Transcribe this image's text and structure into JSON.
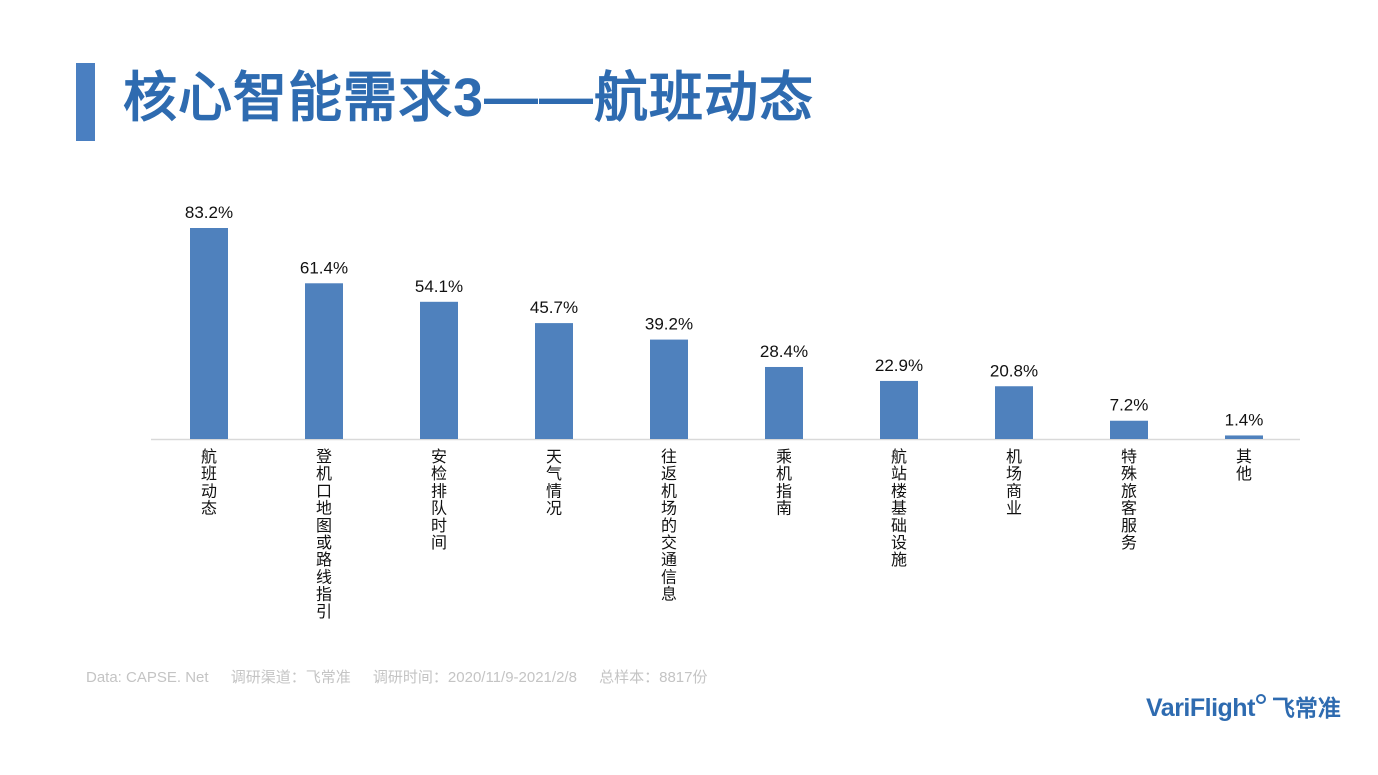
{
  "title": "核心智能需求3——航班动态",
  "footer": {
    "source": "Data: CAPSE. Net",
    "channel": "调研渠道：飞常准",
    "period": "调研时间：2020/11/9-2021/2/8",
    "sample": "总样本：8817份"
  },
  "logo": {
    "en": "VariFlight",
    "cn": "飞常准"
  },
  "colors": {
    "accent": "#4a7fc1",
    "bar": "#4f81bd",
    "title": "#2e6bb0",
    "footer": "#c4c4c4"
  },
  "chart_data": {
    "type": "bar",
    "categories": [
      "航班动态",
      "登机口地图或路线指引",
      "安检排队时间",
      "天气情况",
      "往返机场的交通信息",
      "乘机指南",
      "航站楼基础设施",
      "机场商业",
      "特殊旅客服务",
      "其他"
    ],
    "values": [
      83.2,
      61.4,
      54.1,
      45.7,
      39.2,
      28.4,
      22.9,
      20.8,
      7.2,
      1.4
    ],
    "value_labels": [
      "83.2%",
      "61.4%",
      "54.1%",
      "45.7%",
      "39.2%",
      "28.4%",
      "22.9%",
      "20.8%",
      "7.2%",
      "1.4%"
    ],
    "unit": "%",
    "grid": false,
    "legend": "none",
    "ylim": [
      0,
      100
    ]
  }
}
